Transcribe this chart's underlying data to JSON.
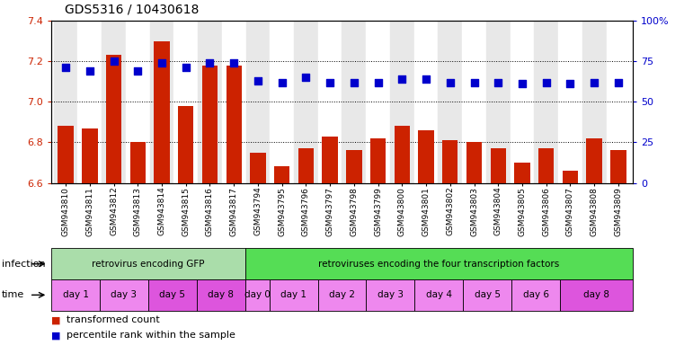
{
  "title": "GDS5316 / 10430618",
  "samples": [
    "GSM943810",
    "GSM943811",
    "GSM943812",
    "GSM943813",
    "GSM943814",
    "GSM943815",
    "GSM943816",
    "GSM943817",
    "GSM943794",
    "GSM943795",
    "GSM943796",
    "GSM943797",
    "GSM943798",
    "GSM943799",
    "GSM943800",
    "GSM943801",
    "GSM943802",
    "GSM943803",
    "GSM943804",
    "GSM943805",
    "GSM943806",
    "GSM943807",
    "GSM943808",
    "GSM943809"
  ],
  "bar_values": [
    6.88,
    6.87,
    7.23,
    6.8,
    7.3,
    6.98,
    7.18,
    7.18,
    6.75,
    6.68,
    6.77,
    6.83,
    6.76,
    6.82,
    6.88,
    6.86,
    6.81,
    6.8,
    6.77,
    6.7,
    6.77,
    6.66,
    6.82,
    6.76
  ],
  "percentile_values": [
    71,
    69,
    75,
    69,
    74,
    71,
    74,
    74,
    63,
    62,
    65,
    62,
    62,
    62,
    64,
    64,
    62,
    62,
    62,
    61,
    62,
    61,
    62,
    62
  ],
  "ylim": [
    6.6,
    7.4
  ],
  "yticks": [
    6.6,
    6.8,
    7.0,
    7.2,
    7.4
  ],
  "right_yticks": [
    0,
    25,
    50,
    75,
    100
  ],
  "bar_color": "#cc2200",
  "dot_color": "#0000cc",
  "dot_size": 30,
  "infection_groups": [
    {
      "label": "retrovirus encoding GFP",
      "start": 0,
      "end": 8,
      "color": "#aaddaa"
    },
    {
      "label": "retroviruses encoding the four transcription factors",
      "start": 8,
      "end": 24,
      "color": "#55dd55"
    }
  ],
  "time_groups": [
    {
      "label": "day 1",
      "start": 0,
      "end": 2,
      "color": "#ee88ee"
    },
    {
      "label": "day 3",
      "start": 2,
      "end": 4,
      "color": "#ee88ee"
    },
    {
      "label": "day 5",
      "start": 4,
      "end": 6,
      "color": "#dd55dd"
    },
    {
      "label": "day 8",
      "start": 6,
      "end": 8,
      "color": "#dd55dd"
    },
    {
      "label": "day 0",
      "start": 8,
      "end": 9,
      "color": "#ee88ee"
    },
    {
      "label": "day 1",
      "start": 9,
      "end": 11,
      "color": "#ee88ee"
    },
    {
      "label": "day 2",
      "start": 11,
      "end": 13,
      "color": "#ee88ee"
    },
    {
      "label": "day 3",
      "start": 13,
      "end": 15,
      "color": "#ee88ee"
    },
    {
      "label": "day 4",
      "start": 15,
      "end": 17,
      "color": "#ee88ee"
    },
    {
      "label": "day 5",
      "start": 17,
      "end": 19,
      "color": "#ee88ee"
    },
    {
      "label": "day 6",
      "start": 19,
      "end": 21,
      "color": "#ee88ee"
    },
    {
      "label": "day 8",
      "start": 21,
      "end": 24,
      "color": "#dd55dd"
    }
  ],
  "legend_items": [
    {
      "label": "transformed count",
      "color": "#cc2200"
    },
    {
      "label": "percentile rank within the sample",
      "color": "#0000cc"
    }
  ],
  "bg_color": "#ffffff",
  "tick_label_color_left": "#cc2200",
  "tick_label_color_right": "#0000cc",
  "bar_bottom": 6.6,
  "col_bg_odd": "#e8e8e8",
  "col_bg_even": "#ffffff"
}
